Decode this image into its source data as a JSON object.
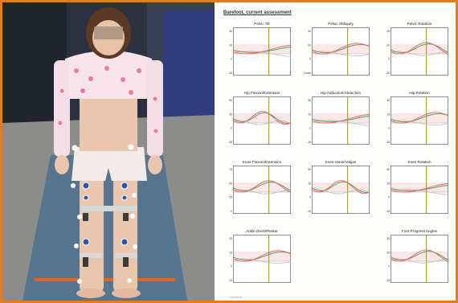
{
  "report": {
    "title": "Barefoot, current assessment",
    "footer": "ref/chkm",
    "colors": {
      "green": "#5aa05a",
      "red": "#e86a6a",
      "gray": "#bbbbbb",
      "event": "#9a9420",
      "band": "#f6d9d9"
    },
    "panels": [
      {
        "title": "Pelvic Tilt",
        "yticks": [
          "40",
          "20",
          "0",
          "-20"
        ]
      },
      {
        "title": "Pelvic Obliquity",
        "yticks": [
          "30",
          "20",
          "0",
          "Down"
        ]
      },
      {
        "title": "Pelvic Rotation",
        "yticks": [
          "30",
          "20",
          "0",
          "-30"
        ]
      },
      {
        "title": "Hip Flexion/Extension",
        "yticks": [
          "60",
          "30",
          "0",
          "-30"
        ]
      },
      {
        "title": "Hip Adduction/Abduction",
        "yticks": [
          "30",
          "15",
          "0",
          "-15"
        ]
      },
      {
        "title": "Hip Rotation",
        "yticks": [
          "30",
          "15",
          "0",
          "-15"
        ]
      },
      {
        "title": "Knee Flexion/Extension",
        "yticks": [
          "75",
          "50",
          "25",
          "0"
        ]
      },
      {
        "title": "Knee Varus/Valgus",
        "yticks": [
          "30",
          "15",
          "0",
          "-15"
        ]
      },
      {
        "title": "Knee Rotation",
        "yticks": [
          "30",
          "15",
          "0",
          "-15"
        ]
      },
      {
        "title": "Ankle Dorsi/Plantar",
        "yticks": [
          "30",
          "15",
          "0",
          "-15"
        ]
      },
      {
        "title": "Foot Progress Angles",
        "yticks": [
          "30",
          "15",
          "0",
          "-15"
        ]
      }
    ]
  },
  "photo": {
    "description_icon": "child-standing-with-markers",
    "colors": {
      "wall": "#3a3f4f",
      "floor": "#8e8e8a",
      "mat": "#55728e",
      "orange_tape": "#e8641e",
      "marker": "#f4f4f4",
      "blue_marker": "#2a58a8"
    }
  }
}
